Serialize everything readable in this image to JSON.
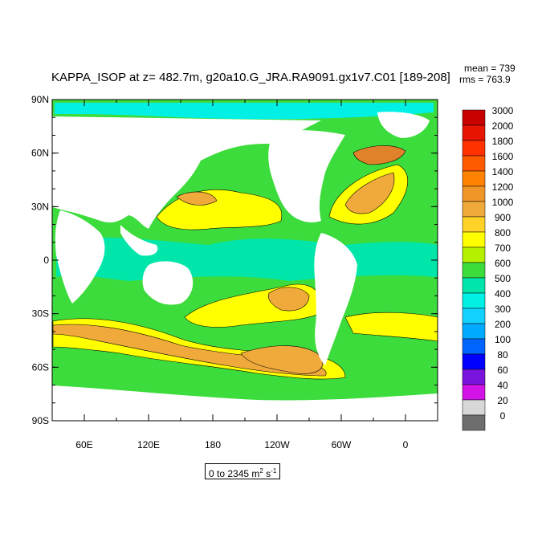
{
  "title": "KAPPA_ISOP at z= 482.7m, g20a10.G_JRA.RA9091.gx1v7.C01 [189-208]",
  "stats": {
    "mean": "mean = 739",
    "rms": "rms = 763.9"
  },
  "range": {
    "text": "0 to 2345 m",
    "units_sup1": "2",
    "units_mid": " s",
    "units_sup2": "-1"
  },
  "axes": {
    "y_ticks": [
      "90N",
      "60N",
      "30N",
      "0",
      "30S",
      "60S",
      "90S"
    ],
    "x_ticks": [
      "60E",
      "120E",
      "180",
      "120W",
      "60W",
      "0"
    ]
  },
  "colorbar": {
    "levels": [
      "3000",
      "2000",
      "1800",
      "1600",
      "1400",
      "1200",
      "1000",
      "900",
      "800",
      "700",
      "600",
      "500",
      "400",
      "300",
      "200",
      "100",
      "80",
      "60",
      "40",
      "20",
      "0"
    ],
    "colors": [
      "#c80000",
      "#e61400",
      "#ff3200",
      "#ff5a00",
      "#ff8200",
      "#f09628",
      "#f0aa3c",
      "#ffd228",
      "#ffff00",
      "#b4f000",
      "#3cdc3c",
      "#00e6aa",
      "#00f0e6",
      "#14d2ff",
      "#00aaff",
      "#0064ff",
      "#0000ff",
      "#7814dc",
      "#d214e6",
      "#d7d7d7",
      "#6e6e6e"
    ]
  },
  "map_colors": {
    "ocean_base": "#3cdc3c",
    "equatorial": "#00e6aa",
    "cyan": "#00f0e6",
    "yellow": "#ffff00",
    "orange": "#f0aa3c",
    "dark_orange": "#e0822a",
    "land": "#ffffff"
  }
}
